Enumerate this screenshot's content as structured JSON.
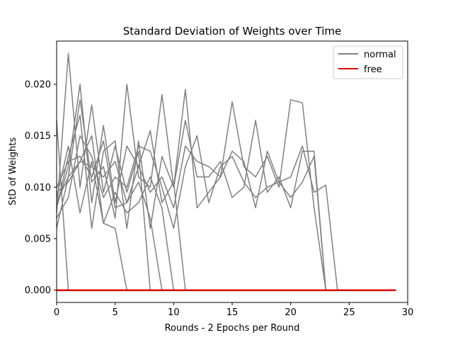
{
  "chart_data": {
    "type": "line",
    "title": "Standard Deviation of Weights over Time",
    "xlabel": "Rounds - 2 Epochs per Round",
    "ylabel": "StD of Weights",
    "xlim": [
      0,
      30
    ],
    "ylim": [
      -0.0012,
      0.0242
    ],
    "xticks": [
      0,
      5,
      10,
      15,
      20,
      25,
      30
    ],
    "yticks": [
      0.0,
      0.005,
      0.01,
      0.015,
      0.02
    ],
    "ytick_labels": [
      "0.000",
      "0.005",
      "0.010",
      "0.015",
      "0.020"
    ],
    "grid": false,
    "legend": {
      "placement": "top-right",
      "entries": [
        {
          "label": "normal",
          "color": "#808080"
        },
        {
          "label": "free",
          "color": "#e00000"
        }
      ]
    },
    "series": [
      {
        "group": "normal",
        "color": "#808080",
        "x": [
          0,
          1
        ],
        "y": [
          0.0165,
          0.0
        ]
      },
      {
        "group": "normal",
        "color": "#808080",
        "x": [
          0,
          1,
          2,
          3,
          4,
          5,
          6,
          7,
          8
        ],
        "y": [
          0.0075,
          0.023,
          0.01,
          0.018,
          0.0095,
          0.014,
          0.0095,
          0.0135,
          0.0
        ]
      },
      {
        "group": "normal",
        "color": "#808080",
        "x": [
          0,
          1,
          2,
          3,
          4,
          5,
          6,
          7,
          8,
          9,
          10,
          11
        ],
        "y": [
          0.008,
          0.012,
          0.02,
          0.0085,
          0.016,
          0.0085,
          0.014,
          0.012,
          0.0155,
          0.0085,
          0.0105,
          0.0
        ]
      },
      {
        "group": "normal",
        "color": "#808080",
        "x": [
          0,
          1,
          2,
          3,
          4,
          5,
          6
        ],
        "y": [
          0.009,
          0.014,
          0.0075,
          0.0125,
          0.0065,
          0.006,
          0.0
        ]
      },
      {
        "group": "normal",
        "color": "#808080",
        "x": [
          0,
          1,
          2,
          3,
          4,
          5,
          6,
          7,
          8,
          9
        ],
        "y": [
          0.01,
          0.0125,
          0.013,
          0.011,
          0.0145,
          0.008,
          0.0085,
          0.0105,
          0.007,
          0.0
        ]
      },
      {
        "group": "normal",
        "color": "#808080",
        "x": [
          0,
          1,
          2,
          3,
          4,
          5,
          6,
          7,
          8,
          9,
          10,
          11,
          12,
          13,
          14,
          15,
          16,
          17,
          18,
          19,
          20,
          21,
          22,
          23,
          24
        ],
        "y": [
          0.007,
          0.009,
          0.015,
          0.013,
          0.009,
          0.011,
          0.01,
          0.014,
          0.0135,
          0.01,
          0.006,
          0.012,
          0.015,
          0.0085,
          0.012,
          0.013,
          0.0105,
          0.009,
          0.01,
          0.0105,
          0.011,
          0.014,
          0.0095,
          0.0102,
          0.0
        ]
      },
      {
        "group": "normal",
        "color": "#808080",
        "x": [
          0,
          1,
          2,
          3,
          4,
          5,
          6,
          7,
          8,
          9,
          10,
          11,
          12,
          13,
          14,
          15,
          16,
          17,
          18,
          19,
          20,
          21,
          22,
          23
        ],
        "y": [
          0.006,
          0.011,
          0.0185,
          0.0105,
          0.012,
          0.007,
          0.02,
          0.011,
          0.01,
          0.019,
          0.01,
          0.0195,
          0.008,
          0.0095,
          0.011,
          0.0183,
          0.012,
          0.011,
          0.013,
          0.01,
          0.0185,
          0.0182,
          0.008,
          0.0
        ]
      },
      {
        "group": "normal",
        "color": "#808080",
        "x": [
          0,
          1,
          2,
          3,
          4,
          5,
          6,
          7,
          8,
          9,
          10,
          11,
          12,
          13,
          14,
          15,
          16,
          17,
          18,
          19,
          20,
          21,
          22,
          23
        ],
        "y": [
          0.008,
          0.013,
          0.017,
          0.006,
          0.0135,
          0.0145,
          0.006,
          0.0145,
          0.006,
          0.013,
          0.01,
          0.0165,
          0.011,
          0.011,
          0.0125,
          0.009,
          0.01,
          0.0165,
          0.0095,
          0.011,
          0.008,
          0.0135,
          0.0135,
          0.0
        ]
      },
      {
        "group": "normal",
        "color": "#808080",
        "x": [
          0,
          1,
          2,
          3,
          4,
          5,
          6,
          7,
          8,
          9,
          10
        ],
        "y": [
          0.0095,
          0.0105,
          0.0125,
          0.015,
          0.0065,
          0.0095,
          0.0075,
          0.0085,
          0.011,
          0.008,
          0.0
        ]
      },
      {
        "group": "normal",
        "color": "#808080",
        "x": [
          0,
          1,
          2,
          3,
          4,
          5,
          6,
          7,
          8,
          9,
          10,
          11,
          12,
          13,
          14,
          15,
          16,
          17,
          18,
          19,
          20,
          21,
          22,
          23
        ],
        "y": [
          0.0085,
          0.011,
          0.0125,
          0.012,
          0.011,
          0.0125,
          0.0085,
          0.012,
          0.0095,
          0.011,
          0.008,
          0.014,
          0.0125,
          0.012,
          0.011,
          0.0135,
          0.0125,
          0.008,
          0.0135,
          0.0105,
          0.009,
          0.0105,
          0.013,
          0.0
        ]
      }
    ],
    "free_series": {
      "group": "free",
      "color": "#e00000",
      "x_range": [
        0,
        29
      ],
      "y": 0.0,
      "count": 10
    }
  }
}
